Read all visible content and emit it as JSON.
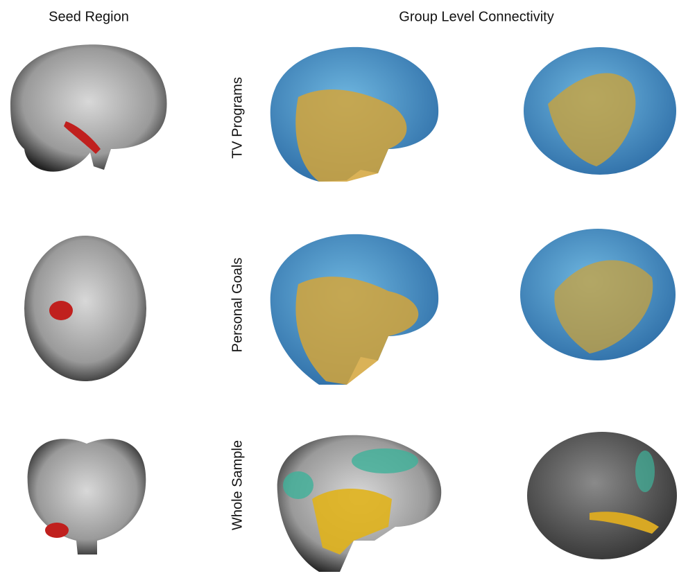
{
  "header": {
    "seed": "Seed Region",
    "connectivity": "Group Level Connectivity"
  },
  "rows": [
    {
      "label": "TV Programs"
    },
    {
      "label": "Personal Goals"
    },
    {
      "label": "Whole Sample"
    }
  ]
}
